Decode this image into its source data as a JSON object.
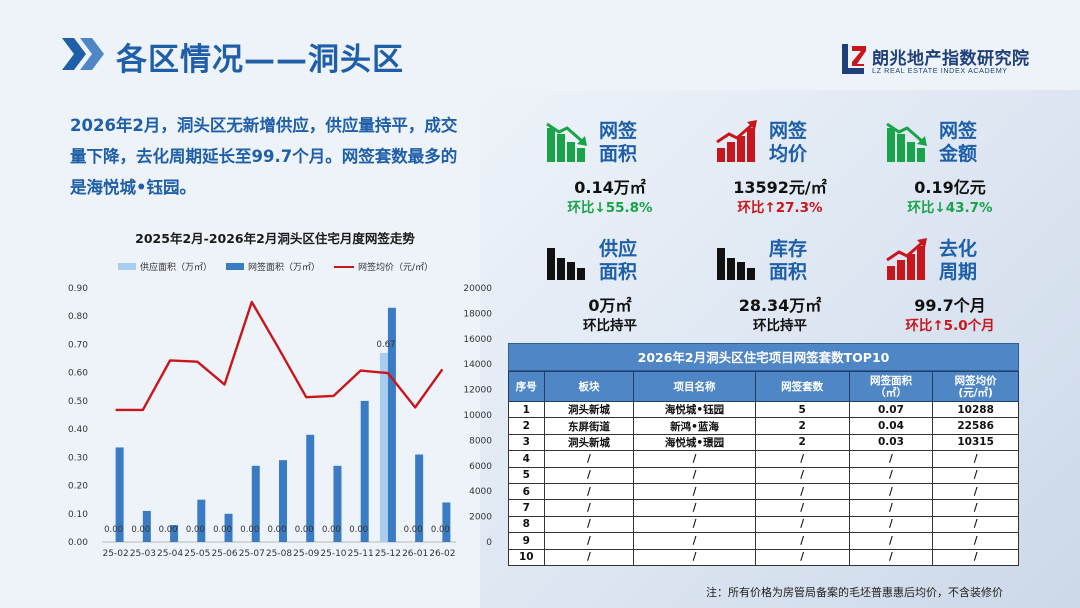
{
  "page": {
    "title": "各区情况——洞头区",
    "logo_name": "朗兆地产指数研究院",
    "logo_sub": "LZ REAL ESTATE INDEX ACADEMY",
    "colors": {
      "title_blue": "#1f5fa8",
      "bar_light": "#a9cdee",
      "bar_dark": "#3a7cc4",
      "line_red": "#c8161d",
      "up_red": "#c8161d",
      "down_green": "#1aa34a"
    }
  },
  "summary": {
    "line1": "2026年2月，洞头区无新增供应，供应量持平，成交",
    "line2": "量下降，去化周期延长至99.7个月。网签套数最多的",
    "line3": "是海悦城•钰园。"
  },
  "chart_data": {
    "type": "bar",
    "title": "2025年2月-2026年2月洞头区住宅月度网签走势",
    "categories": [
      "25-02",
      "25-03",
      "25-04",
      "25-05",
      "25-06",
      "25-07",
      "25-08",
      "25-09",
      "25-10",
      "25-11",
      "25-12",
      "26-01",
      "26-02"
    ],
    "series": [
      {
        "name": "供应面积（万㎡）",
        "type": "bar",
        "axis": "left",
        "values": [
          0,
          0,
          0,
          0,
          0,
          0,
          0,
          0,
          0,
          0,
          0.67,
          0,
          0
        ],
        "labels": [
          "0.00",
          "0.00",
          "0.00",
          "0.00",
          "0.00",
          "0.00",
          "0.00",
          "0.00",
          "0.00",
          "0.00",
          "0.67",
          "0.00",
          "0.00"
        ]
      },
      {
        "name": "网签面积（万㎡）",
        "type": "bar",
        "axis": "left",
        "values": [
          0.335,
          0.11,
          0.06,
          0.15,
          0.1,
          0.27,
          0.29,
          0.38,
          0.27,
          0.5,
          0.83,
          0.31,
          0.14
        ]
      },
      {
        "name": "网签均价（元/㎡）",
        "type": "line",
        "axis": "right",
        "values": [
          10400,
          10400,
          14300,
          14200,
          12400,
          18900,
          15200,
          11400,
          11500,
          13500,
          13300,
          10600,
          13600
        ]
      }
    ],
    "y_left": {
      "min": 0,
      "max": 0.9,
      "ticks": [
        "0.00",
        "0.10",
        "0.20",
        "0.30",
        "0.40",
        "0.50",
        "0.60",
        "0.70",
        "0.80",
        "0.90"
      ]
    },
    "y_right": {
      "min": 0,
      "max": 20000,
      "ticks": [
        "0",
        "2000",
        "4000",
        "6000",
        "8000",
        "10000",
        "12000",
        "14000",
        "16000",
        "18000",
        "20000"
      ]
    },
    "legend_position": "top",
    "grid": false
  },
  "kpis": [
    {
      "label": "网签面积",
      "value": "0.14万㎡",
      "change": "环比↓55.8%",
      "trend": "down",
      "icon": "bar-chart-down-icon"
    },
    {
      "label": "网签均价",
      "value": "13592元/㎡",
      "change": "环比↑27.3%",
      "trend": "up",
      "icon": "bar-chart-up-icon"
    },
    {
      "label": "网签金额",
      "value": "0.19亿元",
      "change": "环比↓43.7%",
      "trend": "down",
      "icon": "bar-chart-down-icon"
    },
    {
      "label": "供应面积",
      "value": "0万㎡",
      "change": "环比持平",
      "trend": "flat",
      "icon": "bar-chart-icon"
    },
    {
      "label": "库存面积",
      "value": "28.34万㎡",
      "change": "环比持平",
      "trend": "flat",
      "icon": "bar-chart-icon"
    },
    {
      "label": "去化周期",
      "value": "99.7个月",
      "change": "环比↑5.0个月",
      "trend": "up",
      "icon": "bar-chart-up-icon"
    }
  ],
  "table": {
    "title": "2026年2月洞头区住宅项目网签套数TOP10",
    "headers": [
      "序号",
      "板块",
      "项目名称",
      "网签套数",
      "网签面积\n（㎡）",
      "网签均价\n(元/㎡)"
    ],
    "rows": [
      [
        "1",
        "洞头新城",
        "海悦城•钰园",
        "5",
        "0.07",
        "10288"
      ],
      [
        "2",
        "东屏街道",
        "新鸿•蓝海",
        "2",
        "0.04",
        "22586"
      ],
      [
        "3",
        "洞头新城",
        "海悦城•璟园",
        "2",
        "0.03",
        "10315"
      ],
      [
        "4",
        "/",
        "/",
        "/",
        "/",
        "/"
      ],
      [
        "5",
        "/",
        "/",
        "/",
        "/",
        "/"
      ],
      [
        "6",
        "/",
        "/",
        "/",
        "/",
        "/"
      ],
      [
        "7",
        "/",
        "/",
        "/",
        "/",
        "/"
      ],
      [
        "8",
        "/",
        "/",
        "/",
        "/",
        "/"
      ],
      [
        "9",
        "/",
        "/",
        "/",
        "/",
        "/"
      ],
      [
        "10",
        "/",
        "/",
        "/",
        "/",
        "/"
      ]
    ]
  },
  "footnote": "注：所有价格为房管局备案的毛坯普惠惠后均价，不含装修价"
}
